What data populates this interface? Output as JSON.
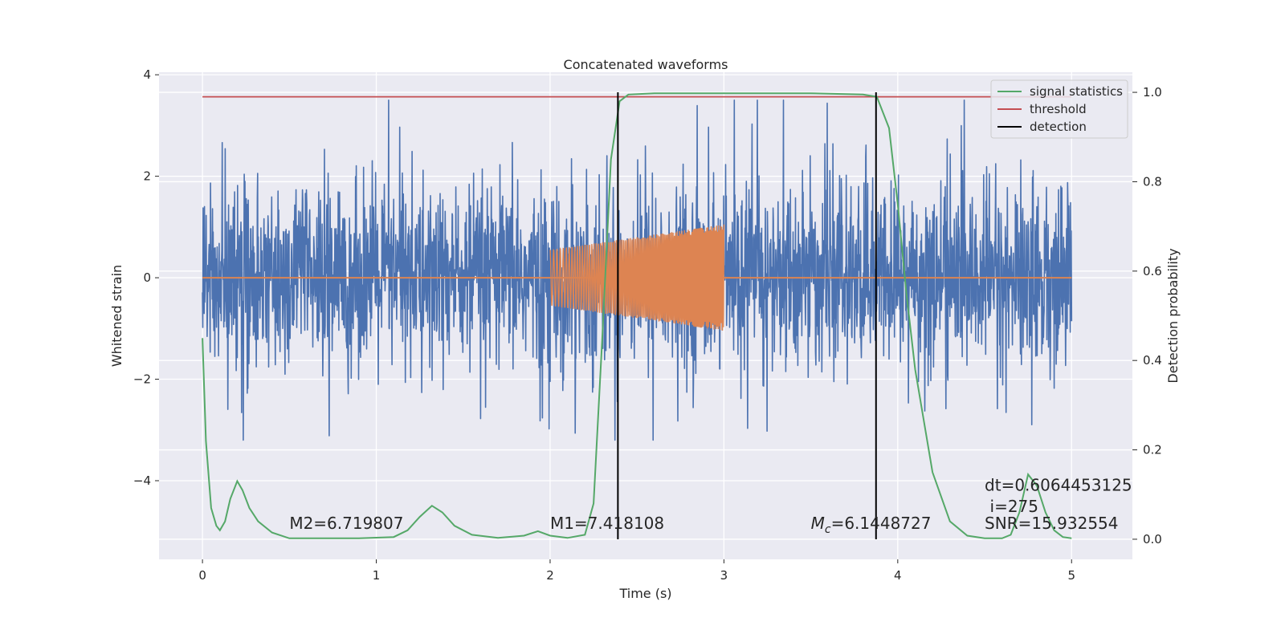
{
  "chart_data": {
    "type": "line",
    "title": "Concatenated waveforms",
    "xlabel": "Time (s)",
    "ylabel": "Whitened strain",
    "y2label": "Detection probability",
    "xlim": [
      -0.25,
      5.35
    ],
    "ylim": [
      -5.55,
      4.05
    ],
    "y2lim": [
      -0.045,
      1.045
    ],
    "xticks": [
      0,
      1,
      2,
      3,
      4,
      5
    ],
    "xtick_labels": [
      "0",
      "1",
      "2",
      "3",
      "4",
      "5"
    ],
    "yticks": [
      4,
      2,
      0,
      -2,
      -4
    ],
    "ytick_labels": [
      "4",
      "2",
      "0",
      "−2",
      "−4"
    ],
    "y2ticks": [
      1.0,
      0.8,
      0.6,
      0.4,
      0.2,
      0.0
    ],
    "y2tick_labels": [
      "1.0",
      "0.8",
      "0.6",
      "0.4",
      "0.2",
      "0.0"
    ],
    "grid": true,
    "legend_placement": "top-right",
    "legend": [
      {
        "label": "signal statistics",
        "color": "#55a868"
      },
      {
        "label": "threshold",
        "color": "#c44e52"
      },
      {
        "label": "detection",
        "color": "#000000"
      }
    ],
    "colors": {
      "strain": "#4c72b0",
      "injection": "#dd8452",
      "signal_statistics": "#55a868",
      "threshold": "#c44e52",
      "detection": "#000000",
      "plot_background": "#eaeaf2",
      "grid": "#ffffff"
    },
    "strain_series": {
      "name": "",
      "x_range": [
        0,
        5
      ],
      "typical_amplitude": 1.5,
      "min": -3.2,
      "max": 3.5
    },
    "injection_series": {
      "name": "",
      "x_range": [
        2.0,
        3.0
      ],
      "start_amplitude": 0.55,
      "end_amplitude": 1.05,
      "baseline": 0
    },
    "signal_statistics": {
      "name": "signal statistics",
      "x": [
        0.0,
        0.02,
        0.05,
        0.08,
        0.1,
        0.13,
        0.16,
        0.2,
        0.23,
        0.27,
        0.32,
        0.4,
        0.5,
        0.7,
        0.9,
        1.1,
        1.18,
        1.25,
        1.32,
        1.38,
        1.45,
        1.55,
        1.7,
        1.85,
        1.93,
        2.0,
        2.1,
        2.2,
        2.25,
        2.3,
        2.35,
        2.4,
        2.45,
        2.6,
        3.0,
        3.5,
        3.8,
        3.88,
        3.95,
        4.0,
        4.05,
        4.1,
        4.2,
        4.3,
        4.4,
        4.5,
        4.6,
        4.65,
        4.7,
        4.75,
        4.8,
        4.85,
        4.9,
        4.95,
        5.0
      ],
      "y": [
        0.45,
        0.22,
        0.07,
        0.03,
        0.02,
        0.04,
        0.09,
        0.13,
        0.11,
        0.07,
        0.04,
        0.015,
        0.002,
        0.002,
        0.002,
        0.005,
        0.02,
        0.05,
        0.075,
        0.06,
        0.03,
        0.01,
        0.003,
        0.008,
        0.018,
        0.008,
        0.003,
        0.01,
        0.08,
        0.45,
        0.85,
        0.98,
        0.995,
        0.998,
        0.998,
        0.998,
        0.995,
        0.99,
        0.92,
        0.75,
        0.55,
        0.38,
        0.15,
        0.04,
        0.008,
        0.002,
        0.002,
        0.01,
        0.06,
        0.145,
        0.12,
        0.06,
        0.02,
        0.005,
        0.002
      ]
    },
    "threshold": {
      "name": "threshold",
      "value": 0.99,
      "x_range": [
        0,
        5
      ]
    },
    "detections": [
      2.39,
      3.875
    ],
    "annotations": [
      {
        "text": "M2=6.719807",
        "x": 0.5,
        "y": -4.95
      },
      {
        "text": "M1=7.418108",
        "x": 2.0,
        "y": -4.95
      },
      {
        "text": "Mc=6.1448727",
        "x": 3.5,
        "y": -4.95
      },
      {
        "text": "dt=0.6064453125",
        "x": 4.5,
        "y": -4.2
      },
      {
        "text": "i=275",
        "x": 4.53,
        "y": -4.62
      },
      {
        "text": "SNR=15.932554",
        "x": 4.5,
        "y": -4.95
      }
    ]
  }
}
